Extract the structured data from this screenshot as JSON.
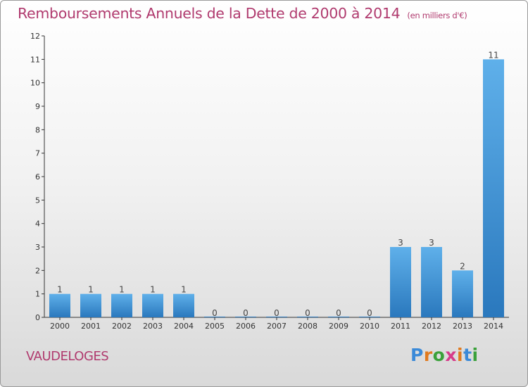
{
  "title": "Remboursements Annuels de la Dette de 2000 à 2014",
  "title_unit": "(en milliers d'€)",
  "town": "VAUDELOGES",
  "logo": {
    "text": "Proxiti",
    "letter_colors": [
      "#3b8ad8",
      "#e07a1f",
      "#3aa13a",
      "#d63b8a",
      "#e07a1f",
      "#3b8ad8",
      "#3aa13a"
    ]
  },
  "colors": {
    "title": "#b03a6e",
    "bar_light": "#5fb0ea",
    "bar_dark": "#2a78bd",
    "axis": "#333333"
  },
  "chart_data": {
    "type": "bar",
    "categories": [
      "2000",
      "2001",
      "2002",
      "2003",
      "2004",
      "2005",
      "2006",
      "2007",
      "2008",
      "2009",
      "2010",
      "2011",
      "2012",
      "2013",
      "2014"
    ],
    "values": [
      1,
      1,
      1,
      1,
      1,
      0,
      0,
      0,
      0,
      0,
      0,
      3,
      3,
      2,
      11
    ],
    "ylim": [
      0,
      12
    ],
    "yticks": [
      "0",
      "1",
      "2",
      "3",
      "4",
      "5",
      "6",
      "7",
      "8",
      "9",
      "10",
      "11",
      "12"
    ],
    "data_labels": [
      "1",
      "1",
      "1",
      "1",
      "1",
      "0",
      "0",
      "0",
      "0",
      "0",
      "0",
      "3",
      "3",
      "2",
      "11"
    ],
    "grid": false
  }
}
